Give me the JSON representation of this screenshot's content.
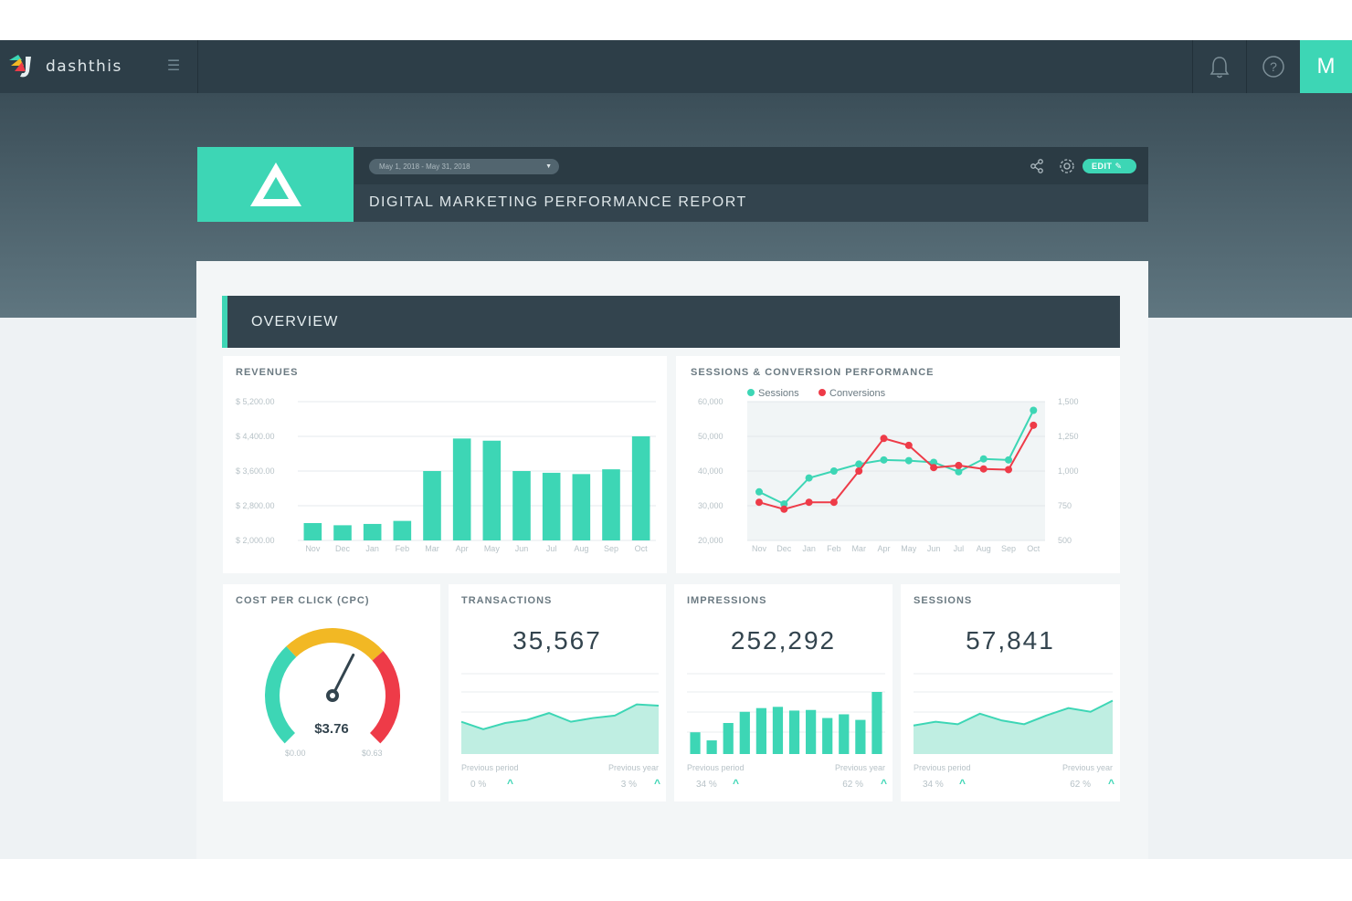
{
  "app": {
    "brand": "dashthis",
    "avatar_initial": "M"
  },
  "report": {
    "date_range": "May 1, 2018 - May 31, 2018",
    "title": "DIGITAL MARKETING PERFORMANCE REPORT",
    "edit_label": "EDIT"
  },
  "section": {
    "title": "OVERVIEW"
  },
  "revenues": {
    "title": "REVENUES",
    "chart_data": {
      "type": "bar",
      "categories": [
        "Nov",
        "Dec",
        "Jan",
        "Feb",
        "Mar",
        "Apr",
        "May",
        "Jun",
        "Jul",
        "Aug",
        "Sep",
        "Oct"
      ],
      "values": [
        2400,
        2350,
        2380,
        2450,
        3600,
        4350,
        4300,
        3600,
        3560,
        3530,
        3640,
        4400
      ],
      "ylim": [
        2000,
        5200
      ],
      "yticks": [
        2000,
        2800,
        3600,
        4400,
        5200
      ],
      "ytick_labels": [
        "$ 2,000.00",
        "$ 2,800.00",
        "$ 3,600.00",
        "$ 4,400.00",
        "$ 5,200.00"
      ],
      "color": "#3dd6b5"
    }
  },
  "sessions_conv": {
    "title": "SESSIONS & CONVERSION PERFORMANCE",
    "chart_data": {
      "type": "line",
      "categories": [
        "Nov",
        "Dec",
        "Jan",
        "Feb",
        "Mar",
        "Apr",
        "May",
        "Jun",
        "Jul",
        "Aug",
        "Sep",
        "Oct"
      ],
      "series": [
        {
          "name": "Sessions",
          "axis": "left",
          "color": "#3dd6b5",
          "values": [
            34000,
            30500,
            38000,
            40000,
            42000,
            43200,
            43000,
            42500,
            39800,
            43500,
            43200,
            57500
          ]
        },
        {
          "name": "Conversions",
          "axis": "right",
          "color": "#ee3b48",
          "values": [
            775,
            725,
            775,
            775,
            1000,
            1235,
            1185,
            1025,
            1040,
            1015,
            1010,
            1330
          ]
        }
      ],
      "y_left": {
        "ylim": [
          20000,
          60000
        ],
        "ticks": [
          "20,000",
          "30,000",
          "40,000",
          "50,000",
          "60,000"
        ]
      },
      "y_right": {
        "ylim": [
          500,
          1500
        ],
        "ticks": [
          "500",
          "750",
          "1,000",
          "1,250",
          "1,500"
        ]
      },
      "legend": "top-left"
    }
  },
  "cpc": {
    "title": "COST PER CLICK (CPC)",
    "value": "$3.76",
    "min_label": "$0.00",
    "max_label": "$0.63",
    "gauge_fraction": 0.6
  },
  "transactions": {
    "title": "TRANSACTIONS",
    "value": "35,567",
    "prev_period_label": "Previous period",
    "prev_year_label": "Previous year",
    "prev_period_pct": "0 %",
    "prev_year_pct": "3 %",
    "chart_data": {
      "type": "area",
      "values": [
        52,
        40,
        50,
        55,
        66,
        52,
        58,
        62,
        80,
        78
      ],
      "ylim": [
        0,
        100
      ]
    }
  },
  "impressions": {
    "title": "IMPRESSIONS",
    "value": "252,292",
    "prev_period_label": "Previous period",
    "prev_year_label": "Previous year",
    "prev_period_pct": "34 %",
    "prev_year_pct": "62 %",
    "chart_data": {
      "type": "bar",
      "values": [
        35,
        22,
        50,
        68,
        74,
        76,
        70,
        71,
        58,
        64,
        55,
        100
      ],
      "ylim": [
        0,
        100
      ]
    }
  },
  "sessions": {
    "title": "SESSIONS",
    "value": "57,841",
    "prev_period_label": "Previous period",
    "prev_year_label": "Previous year",
    "prev_period_pct": "34 %",
    "prev_year_pct": "62 %",
    "chart_data": {
      "type": "area",
      "values": [
        46,
        52,
        48,
        65,
        54,
        48,
        62,
        74,
        68,
        86
      ],
      "ylim": [
        0,
        100
      ]
    }
  }
}
